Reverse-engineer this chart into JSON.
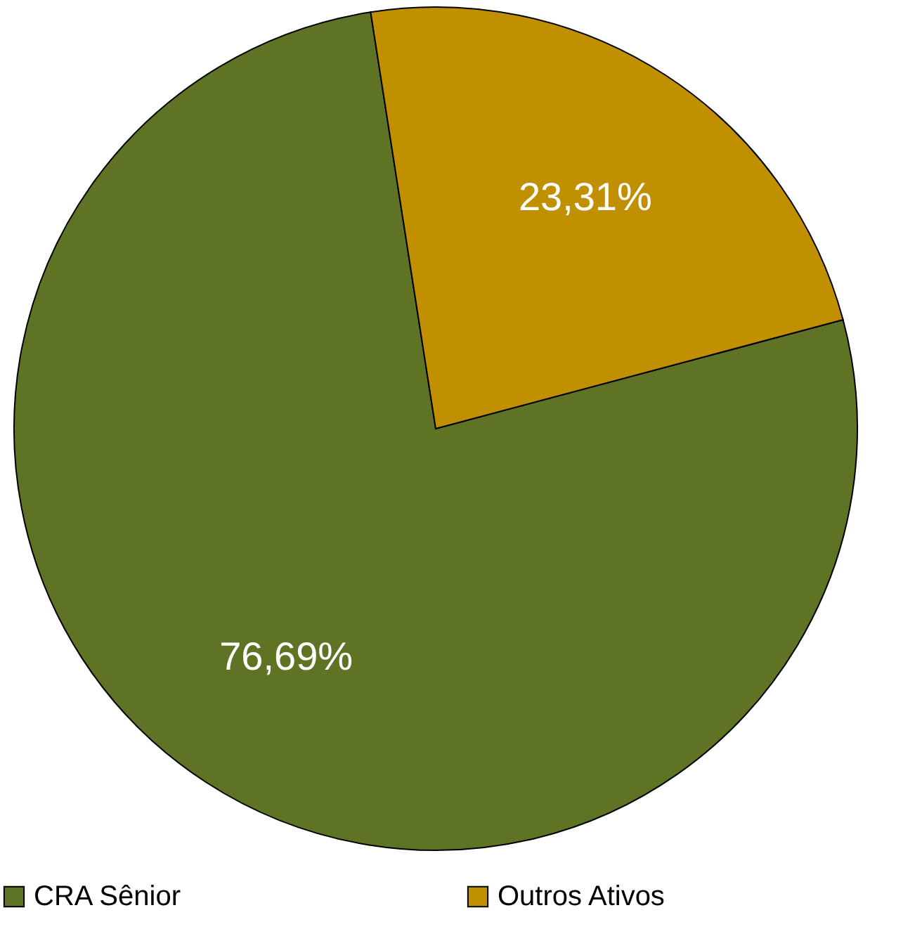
{
  "chart_data": {
    "type": "pie",
    "categories": [
      "CRA Sênior",
      "Outros Ativos"
    ],
    "values": [
      76.69,
      23.31
    ],
    "colors": [
      "#5e7324",
      "#c09000"
    ],
    "value_labels": [
      "76,69%",
      "23,31%"
    ],
    "legend": "bottom"
  }
}
